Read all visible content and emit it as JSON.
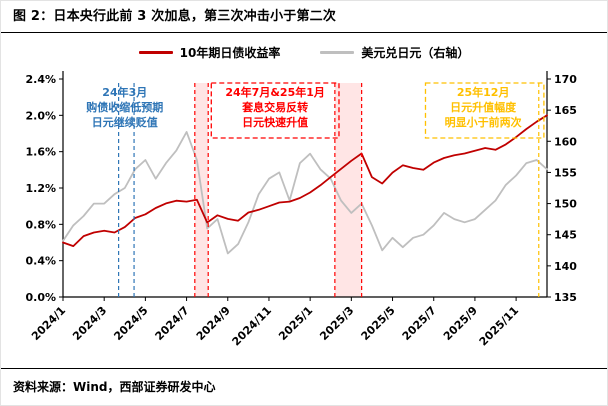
{
  "title": "图 2：日本央行此前 3 次加息，第三次冲击小于第二次",
  "legend": {
    "items": [
      {
        "label": "10年期日债收益率",
        "color": "#C00000"
      },
      {
        "label": "美元兑日元（右轴）",
        "color": "#BFBFBF"
      }
    ]
  },
  "source": "资料来源：Wind，西部证券研发中心",
  "chart_data": {
    "type": "line",
    "title": "日本央行此前3次加息，第三次冲击小于第二次",
    "x_max": 23.5,
    "x_tick_step": 2,
    "x_tick_labels": [
      "2024/1",
      "2024/3",
      "2024/5",
      "2024/7",
      "2024/9",
      "2024/11",
      "2025/1",
      "2025/3",
      "2025/5",
      "2025/7",
      "2025/9",
      "2025/11"
    ],
    "left_axis": {
      "min": 0,
      "max": 2.4,
      "step": 0.4,
      "ticks": [
        "0.0%",
        "0.4%",
        "0.8%",
        "1.2%",
        "1.6%",
        "2.0%",
        "2.4%"
      ]
    },
    "right_axis": {
      "min": 135,
      "max": 170,
      "step": 5,
      "ticks": [
        "135",
        "140",
        "145",
        "150",
        "155",
        "160",
        "165",
        "170"
      ]
    },
    "series": [
      {
        "name": "10年期日债收益率",
        "axis": "left",
        "color": "#C00000",
        "x_start": 0,
        "x_step": 0.5,
        "values": [
          0.6,
          0.56,
          0.67,
          0.71,
          0.73,
          0.71,
          0.77,
          0.87,
          0.91,
          0.98,
          1.03,
          1.06,
          1.05,
          1.07,
          0.82,
          0.9,
          0.86,
          0.84,
          0.93,
          0.96,
          1.0,
          1.04,
          1.05,
          1.09,
          1.15,
          1.23,
          1.32,
          1.41,
          1.5,
          1.58,
          1.32,
          1.25,
          1.37,
          1.45,
          1.42,
          1.4,
          1.48,
          1.53,
          1.56,
          1.58,
          1.61,
          1.64,
          1.62,
          1.68,
          1.76,
          1.85,
          1.93,
          2.0
        ]
      },
      {
        "name": "美元兑日元（右轴）",
        "axis": "right",
        "color": "#BFBFBF",
        "x_start": 0,
        "x_step": 0.5,
        "values": [
          144,
          146.5,
          148,
          150,
          150,
          151.5,
          152.5,
          155.5,
          157,
          154,
          156.5,
          158.5,
          161.5,
          157,
          146,
          147.5,
          142,
          143.5,
          147,
          151.5,
          154,
          155,
          150.5,
          156.5,
          158,
          155.5,
          154,
          150.5,
          148.5,
          150,
          146.5,
          142.5,
          144.5,
          143,
          144.5,
          145,
          146.5,
          148.5,
          147.5,
          147,
          147.5,
          149,
          150.5,
          153,
          154.5,
          156.5,
          157,
          155.5
        ]
      }
    ],
    "annotations": [
      {
        "lines": [
          "24年3月",
          "购债收缩低预期",
          "日元继续贬值"
        ],
        "color": "#2E75B6",
        "text_center_month": 3.0,
        "bands": [
          {
            "from_month": 2.7,
            "to_month": 3.45,
            "shaded": false
          }
        ]
      },
      {
        "lines": [
          "24年7月&25年1月",
          "套息交易反转",
          "日元快速升值"
        ],
        "color": "#FF0000",
        "text_center_month": 10.3,
        "box": {
          "from_month": 7.2,
          "to_month": 13.4
        },
        "bands": [
          {
            "from_month": 6.4,
            "to_month": 7.05,
            "shaded": true
          },
          {
            "from_month": 13.2,
            "to_month": 14.5,
            "shaded": true
          }
        ]
      },
      {
        "lines": [
          "25年12月",
          "日元升值幅度",
          "明显小于前两次"
        ],
        "color": "#FFC000",
        "text_center_month": 20.4,
        "box": {
          "from_month": 17.6,
          "to_month": 23.35
        },
        "bands": [
          {
            "from_month": 23.1,
            "to_month": 23.1,
            "shaded": false
          }
        ]
      }
    ]
  }
}
